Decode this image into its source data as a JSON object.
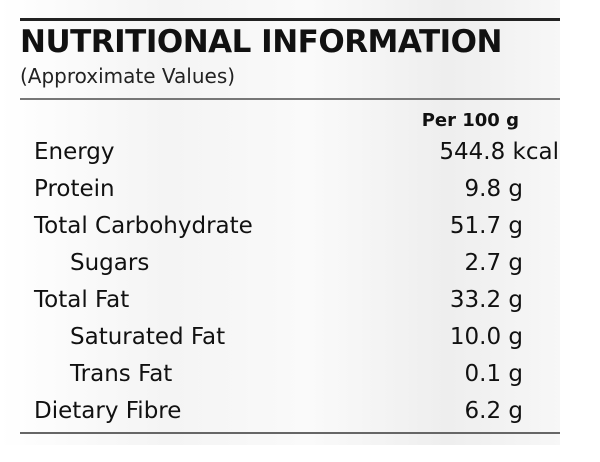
{
  "label": {
    "title": "NUTRITIONAL INFORMATION",
    "subtitle": "(Approximate Values)",
    "column_header": "Per 100 g",
    "rows": [
      {
        "name": "Energy",
        "value": "544.8 kcal"
      },
      {
        "name": "Protein",
        "value": "9.8 g"
      },
      {
        "name": "Total Carbohydrate",
        "value": "51.7 g"
      },
      {
        "name": "Sugars",
        "value": "2.7 g"
      },
      {
        "name": "Total Fat",
        "value": "33.2 g"
      },
      {
        "name": "Saturated Fat",
        "value": "10.0 g"
      },
      {
        "name": "Trans Fat",
        "value": "0.1 g"
      },
      {
        "name": "Dietary Fibre",
        "value": "6.2 g"
      }
    ]
  }
}
